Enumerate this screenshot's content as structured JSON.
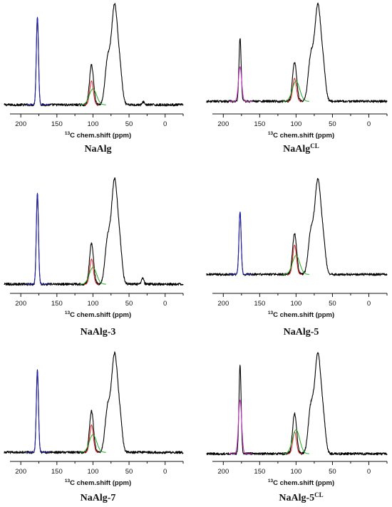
{
  "colors": {
    "spectrum": "#000000",
    "carboxyl": "#1f1fb8",
    "carboxyl_crosslinked": "#cc33cc",
    "c1_mannuronic": "#dd2222",
    "c1_guluronic": "#22aa22"
  },
  "chart_data": [
    {
      "type": "line",
      "caption": {
        "base": "NaAlg",
        "sup": ""
      },
      "xlabel": {
        "sup": "13",
        "main": "C chem.shift (ppm)"
      },
      "xlim": [
        215,
        -25
      ],
      "xticks": [
        200,
        150,
        100,
        50,
        0
      ],
      "ylim": [
        0,
        1
      ],
      "grid": false,
      "legend": "none",
      "series": [
        {
          "color_key": "spectrum",
          "baseline": 0.02,
          "peaks": [
            [
              177,
              0.88,
              1.5
            ],
            [
              102,
              0.4,
              2.8
            ],
            [
              80,
              0.4,
              3.5
            ],
            [
              70,
              1.0,
              4.5
            ],
            [
              62,
              0.22,
              3.0
            ],
            [
              30,
              0.03,
              1.5
            ]
          ],
          "noise": 0.012,
          "x": [
            225,
            -25
          ]
        },
        {
          "color_key": "carboxyl",
          "baseline": 0.02,
          "peaks": [
            [
              177,
              0.88,
              1.5
            ]
          ],
          "x": [
            192,
            160
          ]
        },
        {
          "color_key": "c1_mannuronic",
          "baseline": 0.02,
          "peaks": [
            [
              102,
              0.24,
              2.5
            ]
          ],
          "x": [
            112,
            92
          ]
        },
        {
          "color_key": "c1_guluronic",
          "baseline": 0.02,
          "peaks": [
            [
              100,
              0.16,
              5.0
            ]
          ],
          "x": [
            118,
            82
          ]
        }
      ]
    },
    {
      "type": "line",
      "caption": {
        "base": "NaAlg",
        "sup": "CL"
      },
      "xlabel": {
        "sup": "13",
        "main": "C chem.shift (ppm)"
      },
      "xlim": [
        215,
        -25
      ],
      "xticks": [
        200,
        150,
        100,
        50,
        0
      ],
      "ylim": [
        0,
        1
      ],
      "grid": false,
      "legend": "none",
      "series": [
        {
          "color_key": "spectrum",
          "baseline": 0.02,
          "peaks": [
            [
              177,
              0.66,
              1.5
            ],
            [
              102,
              0.41,
              2.8
            ],
            [
              80,
              0.42,
              3.5
            ],
            [
              70,
              1.0,
              4.5
            ],
            [
              62,
              0.22,
              3.0
            ]
          ],
          "noise": 0.012,
          "x": [
            225,
            -25
          ]
        },
        {
          "color_key": "carboxyl_crosslinked",
          "baseline": 0.02,
          "peaks": [
            [
              177,
              0.36,
              2.2
            ]
          ],
          "x": [
            192,
            160
          ]
        },
        {
          "color_key": "c1_mannuronic",
          "baseline": 0.02,
          "peaks": [
            [
              102,
              0.24,
              2.5
            ]
          ],
          "x": [
            112,
            92
          ]
        },
        {
          "color_key": "c1_guluronic",
          "baseline": 0.02,
          "peaks": [
            [
              100,
              0.21,
              5.0
            ]
          ],
          "x": [
            118,
            82
          ]
        }
      ]
    },
    {
      "type": "line",
      "caption": {
        "base": "NaAlg-3",
        "sup": ""
      },
      "xlabel": {
        "sup": "13",
        "main": "C chem.shift (ppm)"
      },
      "xlim": [
        215,
        -25
      ],
      "xticks": [
        200,
        150,
        100,
        50,
        0
      ],
      "ylim": [
        0,
        1
      ],
      "grid": false,
      "legend": "none",
      "series": [
        {
          "color_key": "spectrum",
          "baseline": 0.02,
          "peaks": [
            [
              177,
              0.87,
              1.5
            ],
            [
              102,
              0.39,
              2.8
            ],
            [
              80,
              0.38,
              3.5
            ],
            [
              70,
              1.0,
              4.5
            ],
            [
              62,
              0.22,
              3.0
            ],
            [
              31,
              0.06,
              1.5
            ]
          ],
          "noise": 0.012,
          "x": [
            225,
            -25
          ]
        },
        {
          "color_key": "carboxyl",
          "baseline": 0.02,
          "peaks": [
            [
              177,
              0.87,
              1.5
            ]
          ],
          "x": [
            192,
            160
          ]
        },
        {
          "color_key": "c1_mannuronic",
          "baseline": 0.02,
          "peaks": [
            [
              102,
              0.24,
              2.5
            ]
          ],
          "x": [
            112,
            92
          ]
        },
        {
          "color_key": "c1_guluronic",
          "baseline": 0.02,
          "peaks": [
            [
              100,
              0.16,
              5.0
            ]
          ],
          "x": [
            118,
            82
          ]
        }
      ]
    },
    {
      "type": "line",
      "caption": {
        "base": "NaAlg-5",
        "sup": ""
      },
      "xlabel": {
        "sup": "13",
        "main": "C chem.shift (ppm)"
      },
      "xlim": [
        215,
        -25
      ],
      "xticks": [
        200,
        150,
        100,
        50,
        0
      ],
      "ylim": [
        0,
        1
      ],
      "grid": false,
      "legend": "none",
      "series": [
        {
          "color_key": "spectrum",
          "baseline": 0.02,
          "peaks": [
            [
              177,
              0.66,
              1.5
            ],
            [
              102,
              0.43,
              2.8
            ],
            [
              80,
              0.4,
              3.5
            ],
            [
              70,
              1.0,
              4.5
            ],
            [
              62,
              0.22,
              3.0
            ]
          ],
          "noise": 0.012,
          "x": [
            225,
            -25
          ]
        },
        {
          "color_key": "carboxyl",
          "baseline": 0.02,
          "peaks": [
            [
              177,
              0.66,
              1.5
            ]
          ],
          "x": [
            192,
            160
          ]
        },
        {
          "color_key": "c1_mannuronic",
          "baseline": 0.02,
          "peaks": [
            [
              102,
              0.31,
              2.5
            ]
          ],
          "x": [
            112,
            92
          ]
        },
        {
          "color_key": "c1_guluronic",
          "baseline": 0.02,
          "peaks": [
            [
              100,
              0.2,
              5.0
            ]
          ],
          "x": [
            118,
            82
          ]
        }
      ]
    },
    {
      "type": "line",
      "caption": {
        "base": "NaAlg-7",
        "sup": ""
      },
      "xlabel": {
        "sup": "13",
        "main": "C chem.shift (ppm)"
      },
      "xlim": [
        215,
        -25
      ],
      "xticks": [
        200,
        150,
        100,
        50,
        0
      ],
      "ylim": [
        0,
        1
      ],
      "grid": false,
      "legend": "none",
      "series": [
        {
          "color_key": "spectrum",
          "baseline": 0.02,
          "peaks": [
            [
              177,
              0.83,
              1.5
            ],
            [
              102,
              0.42,
              2.8
            ],
            [
              80,
              0.4,
              3.5
            ],
            [
              70,
              1.0,
              4.5
            ],
            [
              62,
              0.22,
              3.0
            ]
          ],
          "noise": 0.012,
          "x": [
            225,
            -25
          ]
        },
        {
          "color_key": "carboxyl",
          "baseline": 0.02,
          "peaks": [
            [
              177,
              0.83,
              1.5
            ]
          ],
          "x": [
            192,
            160
          ]
        },
        {
          "color_key": "c1_mannuronic",
          "baseline": 0.02,
          "peaks": [
            [
              102,
              0.28,
              2.5
            ]
          ],
          "x": [
            112,
            92
          ]
        },
        {
          "color_key": "c1_guluronic",
          "baseline": 0.02,
          "peaks": [
            [
              100,
              0.18,
              5.0
            ]
          ],
          "x": [
            118,
            82
          ]
        }
      ]
    },
    {
      "type": "line",
      "caption": {
        "base": "NaAlg-5",
        "sup": "CL"
      },
      "xlabel": {
        "sup": "13",
        "main": "C chem.shift (ppm)"
      },
      "xlim": [
        215,
        -25
      ],
      "xticks": [
        200,
        150,
        100,
        50,
        0
      ],
      "ylim": [
        0,
        1
      ],
      "grid": false,
      "legend": "none",
      "series": [
        {
          "color_key": "spectrum",
          "baseline": 0.02,
          "peaks": [
            [
              177,
              0.88,
              1.5
            ],
            [
              102,
              0.4,
              2.8
            ],
            [
              80,
              0.42,
              3.5
            ],
            [
              70,
              1.0,
              4.5
            ],
            [
              62,
              0.22,
              3.0
            ]
          ],
          "noise": 0.012,
          "x": [
            225,
            -25
          ]
        },
        {
          "color_key": "carboxyl_crosslinked",
          "baseline": 0.02,
          "peaks": [
            [
              177,
              0.54,
              2.2
            ]
          ],
          "x": [
            192,
            160
          ]
        },
        {
          "color_key": "c1_mannuronic",
          "baseline": 0.02,
          "peaks": [
            [
              102,
              0.22,
              2.5
            ]
          ],
          "x": [
            112,
            92
          ]
        },
        {
          "color_key": "c1_guluronic",
          "baseline": 0.02,
          "peaks": [
            [
              100,
              0.24,
              5.0
            ]
          ],
          "x": [
            118,
            82
          ]
        }
      ]
    }
  ]
}
